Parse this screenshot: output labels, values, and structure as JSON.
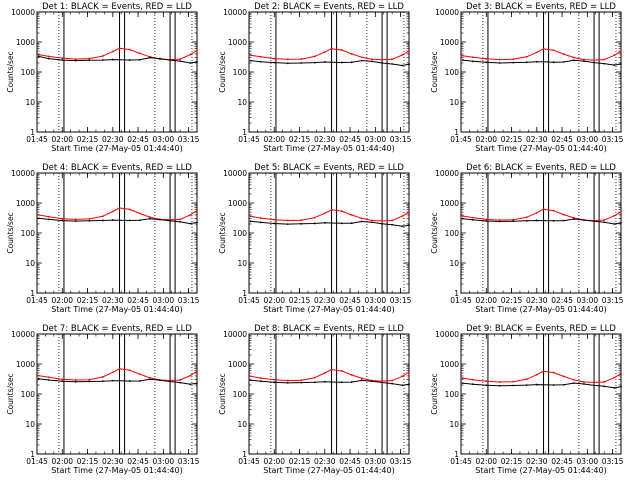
{
  "chart_data": [
    {
      "type": "line",
      "title": "Det 1: BLACK = Events, RED = LLD",
      "xlabel": "Start Time (27-May-05 01:44:40)",
      "ylabel": "Counts/sec",
      "yscale": "log",
      "ylim": [
        1,
        10000
      ],
      "xlim": [
        "01:45",
        "03:20"
      ],
      "x_ticks": [
        "01:45",
        "02:00",
        "02:15",
        "02:30",
        "02:45",
        "03:00",
        "03:15"
      ],
      "y_ticks": [
        "1",
        "10",
        "100",
        "1000",
        "10000"
      ],
      "dotted_markers": [
        "01:58",
        "02:55",
        "03:17"
      ],
      "solid_markers": [
        "02:01",
        "02:34",
        "02:37",
        "03:04",
        "03:07"
      ],
      "x": [
        "01:46",
        "01:52",
        "02:00",
        "02:08",
        "02:16",
        "02:24",
        "02:30",
        "02:34",
        "02:40",
        "02:46",
        "02:52",
        "02:58",
        "03:04",
        "03:10",
        "03:16",
        "03:20"
      ],
      "series": [
        {
          "color": "#ff0000",
          "values": [
            380,
            330,
            290,
            270,
            280,
            340,
            480,
            620,
            560,
            420,
            320,
            270,
            260,
            270,
            380,
            520
          ]
        },
        {
          "color": "#000000",
          "values": [
            330,
            280,
            250,
            240,
            245,
            250,
            260,
            255,
            250,
            255,
            300,
            280,
            250,
            230,
            200,
            220
          ]
        }
      ]
    },
    {
      "type": "line",
      "title": "Det 2: BLACK = Events, RED = LLD",
      "xlabel": "Start Time (27-May-05 01:44:40)",
      "ylabel": "Counts/sec",
      "yscale": "log",
      "ylim": [
        1,
        10000
      ],
      "xlim": [
        "01:45",
        "03:20"
      ],
      "x_ticks": [
        "01:45",
        "02:00",
        "02:15",
        "02:30",
        "02:45",
        "03:00",
        "03:15"
      ],
      "y_ticks": [
        "1",
        "10",
        "100",
        "1000",
        "10000"
      ],
      "dotted_markers": [
        "01:58",
        "02:55",
        "03:17"
      ],
      "solid_markers": [
        "02:01",
        "02:34",
        "02:37",
        "03:04",
        "03:07"
      ],
      "x": [
        "01:46",
        "01:52",
        "02:00",
        "02:08",
        "02:16",
        "02:24",
        "02:30",
        "02:34",
        "02:40",
        "02:46",
        "02:52",
        "02:58",
        "03:04",
        "03:10",
        "03:16",
        "03:20"
      ],
      "series": [
        {
          "color": "#ff0000",
          "values": [
            360,
            320,
            280,
            265,
            270,
            330,
            460,
            600,
            540,
            400,
            310,
            265,
            255,
            265,
            370,
            500
          ]
        },
        {
          "color": "#000000",
          "values": [
            240,
            220,
            205,
            195,
            200,
            205,
            215,
            212,
            208,
            210,
            240,
            225,
            200,
            185,
            165,
            180
          ]
        }
      ]
    },
    {
      "type": "line",
      "title": "Det 3: BLACK = Events, RED = LLD",
      "xlabel": "Start Time (27-May-05 01:44:40)",
      "ylabel": "Counts/sec",
      "yscale": "log",
      "ylim": [
        1,
        10000
      ],
      "xlim": [
        "01:45",
        "03:20"
      ],
      "x_ticks": [
        "01:45",
        "02:00",
        "02:15",
        "02:30",
        "02:45",
        "03:00",
        "03:15"
      ],
      "y_ticks": [
        "1",
        "10",
        "100",
        "1000",
        "10000"
      ],
      "dotted_markers": [
        "01:58",
        "02:55",
        "03:17"
      ],
      "solid_markers": [
        "02:01",
        "02:34",
        "02:37",
        "03:04",
        "03:07"
      ],
      "x": [
        "01:46",
        "01:52",
        "02:00",
        "02:08",
        "02:16",
        "02:24",
        "02:30",
        "02:34",
        "02:40",
        "02:46",
        "02:52",
        "02:58",
        "03:04",
        "03:10",
        "03:16",
        "03:20"
      ],
      "series": [
        {
          "color": "#ff0000",
          "values": [
            350,
            310,
            275,
            260,
            265,
            320,
            450,
            590,
            530,
            395,
            305,
            260,
            250,
            260,
            360,
            490
          ]
        },
        {
          "color": "#000000",
          "values": [
            250,
            228,
            210,
            200,
            205,
            210,
            220,
            218,
            212,
            215,
            245,
            230,
            205,
            190,
            170,
            185
          ]
        }
      ]
    },
    {
      "type": "line",
      "title": "Det 4: BLACK = Events, RED = LLD",
      "xlabel": "Start Time (27-May-05 01:44:40)",
      "ylabel": "Counts/sec",
      "yscale": "log",
      "ylim": [
        1,
        10000
      ],
      "xlim": [
        "01:45",
        "03:20"
      ],
      "x_ticks": [
        "01:45",
        "02:00",
        "02:15",
        "02:30",
        "02:45",
        "03:00",
        "03:15"
      ],
      "y_ticks": [
        "1",
        "10",
        "100",
        "1000",
        "10000"
      ],
      "dotted_markers": [
        "01:58",
        "02:55",
        "03:17"
      ],
      "solid_markers": [
        "02:01",
        "02:34",
        "02:37",
        "03:04",
        "03:07"
      ],
      "x": [
        "01:46",
        "01:52",
        "02:00",
        "02:08",
        "02:16",
        "02:24",
        "02:30",
        "02:34",
        "02:40",
        "02:46",
        "02:52",
        "02:58",
        "03:04",
        "03:10",
        "03:16",
        "03:20"
      ],
      "series": [
        {
          "color": "#ff0000",
          "values": [
            400,
            350,
            300,
            285,
            295,
            360,
            520,
            680,
            610,
            450,
            340,
            285,
            275,
            285,
            400,
            560
          ]
        },
        {
          "color": "#000000",
          "values": [
            310,
            285,
            260,
            250,
            255,
            262,
            270,
            268,
            262,
            265,
            300,
            280,
            255,
            235,
            205,
            225
          ]
        }
      ]
    },
    {
      "type": "line",
      "title": "Det 5: BLACK = Events, RED = LLD",
      "xlabel": "Start Time (27-May-05 01:44:40)",
      "ylabel": "Counts/sec",
      "yscale": "log",
      "ylim": [
        1,
        10000
      ],
      "xlim": [
        "01:45",
        "03:20"
      ],
      "x_ticks": [
        "01:45",
        "02:00",
        "02:15",
        "02:30",
        "02:45",
        "03:00",
        "03:15"
      ],
      "y_ticks": [
        "1",
        "10",
        "100",
        "1000",
        "10000"
      ],
      "dotted_markers": [
        "01:58",
        "02:55",
        "03:17"
      ],
      "solid_markers": [
        "02:01",
        "02:34",
        "02:37",
        "03:04",
        "03:07"
      ],
      "x": [
        "01:46",
        "01:52",
        "02:00",
        "02:08",
        "02:16",
        "02:24",
        "02:30",
        "02:34",
        "02:40",
        "02:46",
        "02:52",
        "02:58",
        "03:04",
        "03:10",
        "03:16",
        "03:20"
      ],
      "series": [
        {
          "color": "#ff0000",
          "values": [
            360,
            315,
            278,
            262,
            268,
            325,
            455,
            595,
            535,
            398,
            308,
            262,
            252,
            262,
            365,
            495
          ]
        },
        {
          "color": "#000000",
          "values": [
            245,
            225,
            208,
            198,
            202,
            208,
            218,
            215,
            210,
            212,
            242,
            228,
            202,
            188,
            168,
            182
          ]
        }
      ]
    },
    {
      "type": "line",
      "title": "Det 6: BLACK = Events, RED = LLD",
      "xlabel": "Start Time (27-May-05 01:44:40)",
      "ylabel": "Counts/sec",
      "yscale": "log",
      "ylim": [
        1,
        10000
      ],
      "xlim": [
        "01:45",
        "03:20"
      ],
      "x_ticks": [
        "01:45",
        "02:00",
        "02:15",
        "02:30",
        "02:45",
        "03:00",
        "03:15"
      ],
      "y_ticks": [
        "1",
        "10",
        "100",
        "1000",
        "10000"
      ],
      "dotted_markers": [
        "01:58",
        "02:55",
        "03:17"
      ],
      "solid_markers": [
        "02:01",
        "02:34",
        "02:37",
        "03:04",
        "03:07"
      ],
      "x": [
        "01:46",
        "01:52",
        "02:00",
        "02:08",
        "02:16",
        "02:24",
        "02:30",
        "02:34",
        "02:40",
        "02:46",
        "02:52",
        "02:58",
        "03:04",
        "03:10",
        "03:16",
        "03:20"
      ],
      "series": [
        {
          "color": "#ff0000",
          "values": [
            370,
            325,
            285,
            270,
            278,
            335,
            470,
            620,
            555,
            410,
            318,
            270,
            260,
            270,
            375,
            510
          ]
        },
        {
          "color": "#000000",
          "values": [
            300,
            275,
            252,
            242,
            248,
            255,
            262,
            260,
            255,
            258,
            292,
            272,
            248,
            228,
            200,
            218
          ]
        }
      ]
    },
    {
      "type": "line",
      "title": "Det 7: BLACK = Events, RED = LLD",
      "xlabel": "Start Time (27-May-05 01:44:40)",
      "ylabel": "Counts/sec",
      "yscale": "log",
      "ylim": [
        1,
        10000
      ],
      "xlim": [
        "01:45",
        "03:20"
      ],
      "x_ticks": [
        "01:45",
        "02:00",
        "02:15",
        "02:30",
        "02:45",
        "03:00",
        "03:15"
      ],
      "y_ticks": [
        "1",
        "10",
        "100",
        "1000",
        "10000"
      ],
      "dotted_markers": [
        "01:58",
        "02:55",
        "03:17"
      ],
      "solid_markers": [
        "02:01",
        "02:34",
        "02:37",
        "03:04",
        "03:07"
      ],
      "x": [
        "01:46",
        "01:52",
        "02:00",
        "02:08",
        "02:16",
        "02:24",
        "02:30",
        "02:34",
        "02:40",
        "02:46",
        "02:52",
        "02:58",
        "03:04",
        "03:10",
        "03:16",
        "03:20"
      ],
      "series": [
        {
          "color": "#ff0000",
          "values": [
            410,
            360,
            310,
            292,
            300,
            370,
            530,
            690,
            620,
            460,
            348,
            292,
            282,
            292,
            410,
            570
          ]
        },
        {
          "color": "#000000",
          "values": [
            320,
            292,
            268,
            256,
            262,
            268,
            278,
            275,
            270,
            272,
            308,
            288,
            262,
            240,
            210,
            230
          ]
        }
      ]
    },
    {
      "type": "line",
      "title": "Det 8: BLACK = Events, RED = LLD",
      "xlabel": "Start Time (27-May-05 01:44:40)",
      "ylabel": "Counts/sec",
      "yscale": "log",
      "ylim": [
        1,
        10000
      ],
      "xlim": [
        "01:45",
        "03:20"
      ],
      "x_ticks": [
        "01:45",
        "02:00",
        "02:15",
        "02:30",
        "02:45",
        "03:00",
        "03:15"
      ],
      "y_ticks": [
        "1",
        "10",
        "100",
        "1000",
        "10000"
      ],
      "dotted_markers": [
        "01:58",
        "02:55",
        "03:17"
      ],
      "solid_markers": [
        "02:01",
        "02:34",
        "02:37",
        "03:04",
        "03:07"
      ],
      "x": [
        "01:46",
        "01:52",
        "02:00",
        "02:08",
        "02:16",
        "02:24",
        "02:30",
        "02:34",
        "02:40",
        "02:46",
        "02:52",
        "02:58",
        "03:04",
        "03:10",
        "03:16",
        "03:20"
      ],
      "series": [
        {
          "color": "#ff0000",
          "values": [
            390,
            340,
            298,
            280,
            288,
            350,
            500,
            650,
            585,
            432,
            330,
            280,
            270,
            280,
            390,
            540
          ]
        },
        {
          "color": "#000000",
          "values": [
            290,
            268,
            245,
            235,
            240,
            246,
            255,
            252,
            248,
            250,
            285,
            266,
            242,
            222,
            195,
            212
          ]
        }
      ]
    },
    {
      "type": "line",
      "title": "Det 9: BLACK = Events, RED = LLD",
      "xlabel": "Start Time (27-May-05 01:44:40)",
      "ylabel": "Counts/sec",
      "yscale": "log",
      "ylim": [
        1,
        10000
      ],
      "xlim": [
        "01:45",
        "03:20"
      ],
      "x_ticks": [
        "01:45",
        "02:00",
        "02:15",
        "02:30",
        "02:45",
        "03:00",
        "03:15"
      ],
      "y_ticks": [
        "1",
        "10",
        "100",
        "1000",
        "10000"
      ],
      "dotted_markers": [
        "01:58",
        "02:55",
        "03:17"
      ],
      "solid_markers": [
        "02:01",
        "02:34",
        "02:37",
        "03:04",
        "03:07"
      ],
      "x": [
        "01:46",
        "01:52",
        "02:00",
        "02:08",
        "02:16",
        "02:24",
        "02:30",
        "02:34",
        "02:40",
        "02:46",
        "02:52",
        "02:58",
        "03:04",
        "03:10",
        "03:16",
        "03:20"
      ],
      "series": [
        {
          "color": "#ff0000",
          "values": [
            340,
            300,
            268,
            252,
            258,
            312,
            440,
            575,
            518,
            385,
            298,
            252,
            244,
            252,
            350,
            475
          ]
        },
        {
          "color": "#000000",
          "values": [
            230,
            212,
            196,
            188,
            192,
            198,
            206,
            204,
            200,
            202,
            230,
            216,
            194,
            180,
            160,
            174
          ]
        }
      ]
    }
  ]
}
